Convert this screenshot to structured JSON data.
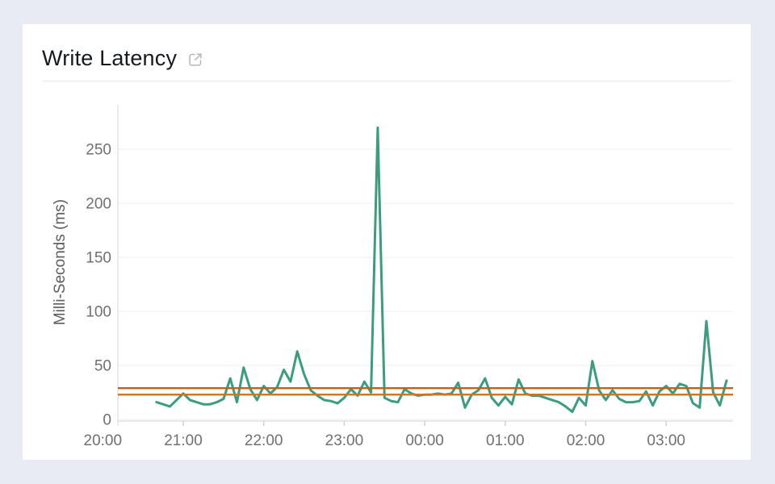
{
  "page": {
    "background": "#e8ebf3",
    "card_background": "#ffffff"
  },
  "header": {
    "title": "Write Latency",
    "icon": "external-link-icon"
  },
  "chart_data": {
    "type": "line",
    "title": "Write Latency",
    "xlabel": "",
    "ylabel": "Milli-Seconds (ms)",
    "ylim": [
      0,
      280
    ],
    "grid": "horizontal",
    "legend": "none",
    "y_ticks": [
      0,
      50,
      100,
      150,
      200,
      250
    ],
    "x_tick_labels": [
      "20:00",
      "21:00",
      "22:00",
      "23:00",
      "00:00",
      "01:00",
      "02:00",
      "03:00"
    ],
    "axis_text_color": "#6e7073",
    "grid_color": "#eeeeee",
    "series": [
      {
        "name": "write_latency_ms",
        "color": "#3c9d7e",
        "x": [
          "20:40",
          "20:45",
          "20:50",
          "20:55",
          "21:00",
          "21:05",
          "21:10",
          "21:15",
          "21:20",
          "21:25",
          "21:30",
          "21:35",
          "21:40",
          "21:45",
          "21:50",
          "21:55",
          "22:00",
          "22:05",
          "22:10",
          "22:15",
          "22:20",
          "22:25",
          "22:30",
          "22:35",
          "22:40",
          "22:45",
          "22:50",
          "22:55",
          "23:00",
          "23:05",
          "23:10",
          "23:15",
          "23:20",
          "23:25",
          "23:30",
          "23:35",
          "23:40",
          "23:45",
          "23:50",
          "23:55",
          "00:00",
          "00:05",
          "00:10",
          "00:15",
          "00:20",
          "00:25",
          "00:30",
          "00:35",
          "00:40",
          "00:45",
          "00:50",
          "00:55",
          "01:00",
          "01:05",
          "01:10",
          "01:15",
          "01:20",
          "01:25",
          "01:30",
          "01:35",
          "01:40",
          "01:45",
          "01:50",
          "01:55",
          "02:00",
          "02:05",
          "02:10",
          "02:15",
          "02:20",
          "02:25",
          "02:30",
          "02:35",
          "02:40",
          "02:45",
          "02:50",
          "02:55",
          "03:00",
          "03:05",
          "03:10",
          "03:15",
          "03:20",
          "03:25",
          "03:30",
          "03:35",
          "03:40",
          "03:45"
        ],
        "values": [
          16,
          14,
          12,
          18,
          24,
          18,
          16,
          14,
          14,
          16,
          19,
          38,
          16,
          48,
          28,
          18,
          31,
          24,
          30,
          46,
          35,
          63,
          42,
          27,
          22,
          18,
          17,
          15,
          20,
          28,
          22,
          35,
          25,
          270,
          20,
          17,
          16,
          28,
          24,
          22,
          23,
          23,
          24,
          23,
          24,
          34,
          11,
          23,
          27,
          38,
          20,
          13,
          21,
          14,
          37,
          24,
          22,
          22,
          20,
          18,
          16,
          12,
          7,
          20,
          13,
          54,
          27,
          18,
          27,
          19,
          16,
          16,
          17,
          26,
          13,
          26,
          31,
          24,
          33,
          31,
          15,
          11,
          91,
          25,
          13,
          36
        ]
      }
    ],
    "thresholds": [
      {
        "value": 29,
        "color": "#c2601a"
      },
      {
        "value": 23,
        "color": "#d2731e"
      }
    ]
  }
}
